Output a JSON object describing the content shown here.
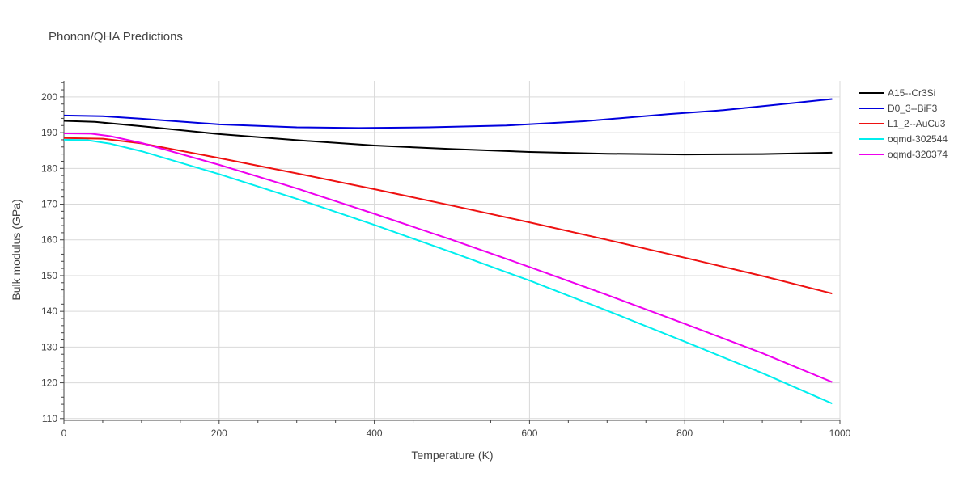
{
  "chart_data": {
    "type": "line",
    "title": "Phonon/QHA Predictions",
    "xlabel": "Temperature (K)",
    "ylabel": "Bulk modulus (GPa)",
    "xlim": [
      0,
      1000
    ],
    "ylim": [
      109.5,
      204.5
    ],
    "xticks": [
      0,
      200,
      400,
      600,
      800,
      1000
    ],
    "yticks": [
      110,
      120,
      130,
      140,
      150,
      160,
      170,
      180,
      190,
      200
    ],
    "grid": true,
    "legend_position": "top-right-outside",
    "series": [
      {
        "name": "A15--Cr3Si",
        "color": "#000000",
        "x": [
          0,
          40,
          100,
          200,
          300,
          400,
          500,
          600,
          700,
          800,
          900,
          990
        ],
        "y": [
          193.3,
          193.0,
          191.8,
          189.6,
          187.9,
          186.4,
          185.4,
          184.6,
          184.1,
          183.9,
          184.0,
          184.4
        ]
      },
      {
        "name": "D0_3--BiF3",
        "color": "#0000dd",
        "x": [
          0,
          50,
          100,
          200,
          300,
          380,
          470,
          570,
          670,
          780,
          850,
          990
        ],
        "y": [
          194.8,
          194.6,
          193.9,
          192.3,
          191.5,
          191.3,
          191.5,
          192.0,
          193.2,
          195.2,
          196.3,
          199.4
        ]
      },
      {
        "name": "L1_2--AuCu3",
        "color": "#ee1111",
        "x": [
          0,
          50,
          100,
          200,
          300,
          400,
          500,
          600,
          700,
          800,
          900,
          990
        ],
        "y": [
          188.5,
          188.3,
          187.0,
          182.9,
          178.6,
          174.2,
          169.6,
          164.9,
          160.0,
          155.0,
          149.9,
          145.0
        ]
      },
      {
        "name": "oqmd-302544",
        "color": "#00eeee",
        "x": [
          0,
          30,
          60,
          100,
          200,
          300,
          400,
          500,
          600,
          700,
          800,
          900,
          990
        ],
        "y": [
          188.0,
          187.9,
          186.9,
          184.8,
          178.4,
          171.5,
          164.2,
          156.5,
          148.6,
          140.2,
          131.5,
          122.7,
          114.2
        ]
      },
      {
        "name": "oqmd-320374",
        "color": "#ee00ee",
        "x": [
          0,
          35,
          60,
          100,
          200,
          300,
          400,
          500,
          600,
          700,
          800,
          900,
          990
        ],
        "y": [
          189.8,
          189.7,
          189.0,
          187.1,
          181.0,
          174.4,
          167.3,
          160.0,
          152.4,
          144.6,
          136.5,
          128.3,
          120.2
        ]
      }
    ]
  }
}
